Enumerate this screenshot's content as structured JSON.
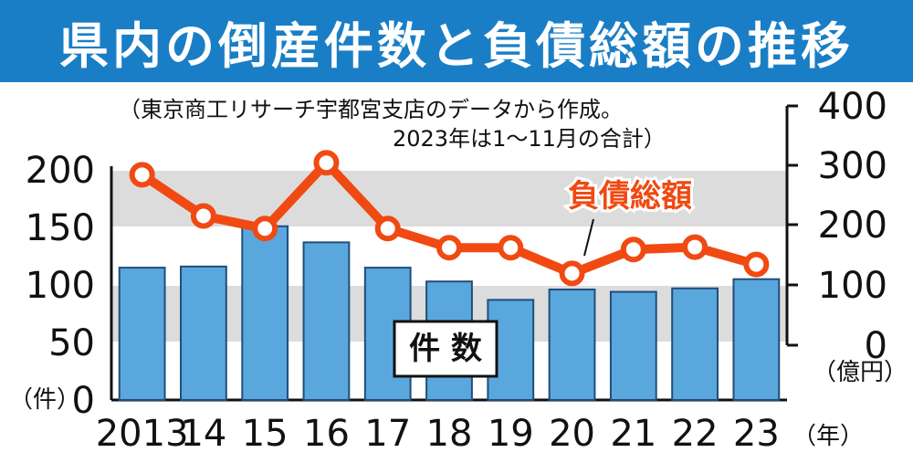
{
  "title": "県内の倒産件数と負債総額の推移",
  "note_line1": "（東京商工リサーチ宇都宮支店のデータから作成。",
  "note_line2": "2023年は1～11月の合計）",
  "colors": {
    "title_bg": "#1a7ec6",
    "bar_fill": "#5aa7de",
    "bar_stroke": "#1f4e79",
    "line": "#f04a12",
    "band": "#dcdcdc"
  },
  "chart_data": {
    "type": "bar+line",
    "categories": [
      "2013",
      "14",
      "15",
      "16",
      "17",
      "18",
      "19",
      "20",
      "21",
      "22",
      "23"
    ],
    "x_unit": "（年）",
    "left_axis": {
      "unit": "（件）",
      "ylim": [
        0,
        200
      ],
      "ticks": [
        "0",
        "50",
        "100",
        "150",
        "200"
      ]
    },
    "right_axis": {
      "unit": "（億円）",
      "ylim": [
        0,
        400
      ],
      "ticks": [
        "0",
        "100",
        "200",
        "300",
        "400"
      ]
    },
    "bar_label": "件 数",
    "line_label": "負債総額",
    "series": [
      {
        "name": "件 数",
        "type": "bar",
        "axis": "left",
        "values": [
          115,
          116,
          151,
          137,
          115,
          103,
          87,
          96,
          94,
          97,
          105
        ]
      },
      {
        "name": "負債総額",
        "type": "line",
        "axis": "right",
        "values": [
          285,
          216,
          195,
          305,
          195,
          163,
          163,
          120,
          160,
          164,
          135
        ]
      }
    ],
    "grid_bands": true
  }
}
